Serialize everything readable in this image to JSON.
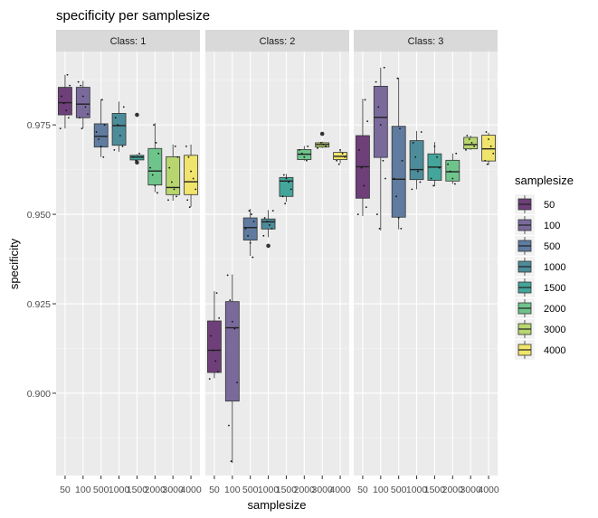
{
  "chart_data": {
    "type": "boxplot",
    "title": "specificity per samplesize",
    "xlabel": "samplesize",
    "ylabel": "specificity",
    "ylim": [
      0.877,
      0.9955
    ],
    "yticks": [
      0.9,
      0.925,
      0.95,
      0.975
    ],
    "ytick_labels": [
      "0.900",
      "0.925",
      "0.950",
      "0.975"
    ],
    "categories": [
      "50",
      "100",
      "500",
      "1000",
      "1500",
      "2000",
      "3000",
      "4000"
    ],
    "legend": {
      "title": "samplesize",
      "position": "right"
    },
    "colors": [
      "#6f3f7a",
      "#7a6a9c",
      "#5f7ba0",
      "#4d8c9a",
      "#44a59a",
      "#6ec48b",
      "#b8d66f",
      "#f0e46c"
    ],
    "panels": [
      {
        "label": "Class: 1",
        "boxes": [
          {
            "q1": 0.9778,
            "med": 0.9812,
            "q3": 0.9855,
            "lo": 0.974,
            "hi": 0.989,
            "points": [
              0.974,
              0.977,
              0.979,
              0.981,
              0.983,
              0.986,
              0.989
            ],
            "outliers": []
          },
          {
            "q1": 0.977,
            "med": 0.9808,
            "q3": 0.9855,
            "lo": 0.974,
            "hi": 0.9873,
            "points": [
              0.974,
              0.977,
              0.978,
              0.98,
              0.983,
              0.986,
              0.987
            ],
            "outliers": []
          },
          {
            "q1": 0.9688,
            "med": 0.9718,
            "q3": 0.9753,
            "lo": 0.966,
            "hi": 0.9822,
            "points": [
              0.966,
              0.969,
              0.971,
              0.973,
              0.975,
              0.982
            ],
            "outliers": []
          },
          {
            "q1": 0.9693,
            "med": 0.9748,
            "q3": 0.9782,
            "lo": 0.9675,
            "hi": 0.9815,
            "points": [
              0.968,
              0.969,
              0.972,
              0.975,
              0.977,
              0.98
            ],
            "outliers": []
          },
          {
            "q1": 0.9652,
            "med": 0.966,
            "q3": 0.9665,
            "lo": 0.965,
            "hi": 0.9668,
            "points": [
              0.965,
              0.966,
              0.966,
              0.967
            ],
            "outliers": [
              0.9778,
              0.9645
            ]
          },
          {
            "q1": 0.9582,
            "med": 0.9621,
            "q3": 0.9684,
            "lo": 0.9562,
            "hi": 0.9755,
            "points": [
              0.956,
              0.958,
              0.961,
              0.963,
              0.967,
              0.97,
              0.975
            ],
            "outliers": []
          },
          {
            "q1": 0.9555,
            "med": 0.9575,
            "q3": 0.9661,
            "lo": 0.9538,
            "hi": 0.9695,
            "points": [
              0.954,
              0.955,
              0.957,
              0.959,
              0.963,
              0.966,
              0.969
            ],
            "outliers": []
          },
          {
            "q1": 0.9555,
            "med": 0.9591,
            "q3": 0.9665,
            "lo": 0.9521,
            "hi": 0.9695,
            "points": [
              0.952,
              0.954,
              0.957,
              0.96,
              0.962,
              0.966,
              0.969
            ],
            "outliers": []
          }
        ]
      },
      {
        "label": "Class: 2",
        "boxes": [
          {
            "q1": 0.9058,
            "med": 0.912,
            "q3": 0.9202,
            "lo": 0.9042,
            "hi": 0.9285,
            "points": [
              0.904,
              0.906,
              0.909,
              0.912,
              0.916,
              0.921,
              0.928
            ],
            "outliers": []
          },
          {
            "q1": 0.8978,
            "med": 0.9183,
            "q3": 0.9256,
            "lo": 0.8805,
            "hi": 0.9332,
            "points": [
              0.881,
              0.891,
              0.903,
              0.918,
              0.92,
              0.926,
              0.933
            ],
            "outliers": []
          },
          {
            "q1": 0.9428,
            "med": 0.9463,
            "q3": 0.949,
            "lo": 0.9384,
            "hi": 0.9515,
            "points": [
              0.938,
              0.942,
              0.944,
              0.946,
              0.948,
              0.95,
              0.951
            ],
            "outliers": []
          },
          {
            "q1": 0.9459,
            "med": 0.9479,
            "q3": 0.9487,
            "lo": 0.9436,
            "hi": 0.9512,
            "points": [
              0.944,
              0.946,
              0.947,
              0.948,
              0.949,
              0.951
            ],
            "outliers": [
              0.9412
            ]
          },
          {
            "q1": 0.955,
            "med": 0.9593,
            "q3": 0.9603,
            "lo": 0.9535,
            "hi": 0.9613,
            "points": [
              0.953,
              0.955,
              0.957,
              0.959,
              0.96,
              0.961
            ],
            "outliers": []
          },
          {
            "q1": 0.9653,
            "med": 0.9668,
            "q3": 0.9681,
            "lo": 0.965,
            "hi": 0.9691,
            "points": [
              0.965,
              0.966,
              0.967,
              0.968,
              0.969
            ],
            "outliers": []
          },
          {
            "q1": 0.9688,
            "med": 0.9695,
            "q3": 0.97,
            "lo": 0.9685,
            "hi": 0.9703,
            "points": [
              0.9685,
              0.969,
              0.9695,
              0.97
            ],
            "outliers": [
              0.9725
            ]
          },
          {
            "q1": 0.9653,
            "med": 0.9662,
            "q3": 0.9673,
            "lo": 0.9643,
            "hi": 0.9681,
            "points": [
              0.964,
              0.965,
              0.966,
              0.967,
              0.968
            ],
            "outliers": []
          }
        ]
      },
      {
        "label": "Class: 3",
        "boxes": [
          {
            "q1": 0.9545,
            "med": 0.9633,
            "q3": 0.972,
            "lo": 0.9495,
            "hi": 0.9823,
            "points": [
              0.95,
              0.952,
              0.958,
              0.963,
              0.968,
              0.976,
              0.982
            ],
            "outliers": []
          },
          {
            "q1": 0.9659,
            "med": 0.9771,
            "q3": 0.9858,
            "lo": 0.9455,
            "hi": 0.991,
            "points": [
              0.946,
              0.95,
              0.96,
              0.965,
              0.975,
              0.98,
              0.987,
              0.991
            ],
            "outliers": []
          },
          {
            "q1": 0.9492,
            "med": 0.9598,
            "q3": 0.9746,
            "lo": 0.9458,
            "hi": 0.9882,
            "points": [
              0.946,
              0.949,
              0.955,
              0.96,
              0.965,
              0.974,
              0.988
            ],
            "outliers": []
          },
          {
            "q1": 0.9597,
            "med": 0.9625,
            "q3": 0.9706,
            "lo": 0.957,
            "hi": 0.9733,
            "points": [
              0.957,
              0.959,
              0.962,
              0.966,
              0.97,
              0.973
            ],
            "outliers": []
          },
          {
            "q1": 0.9595,
            "med": 0.9632,
            "q3": 0.9669,
            "lo": 0.9578,
            "hi": 0.9702,
            "points": [
              0.958,
              0.96,
              0.963,
              0.966,
              0.969
            ],
            "outliers": []
          },
          {
            "q1": 0.9593,
            "med": 0.9619,
            "q3": 0.9651,
            "lo": 0.9585,
            "hi": 0.967,
            "points": [
              0.9585,
              0.96,
              0.962,
              0.964,
              0.967
            ],
            "outliers": []
          },
          {
            "q1": 0.9683,
            "med": 0.9695,
            "q3": 0.9715,
            "lo": 0.968,
            "hi": 0.972,
            "points": [
              0.968,
              0.969,
              0.97,
              0.971,
              0.972
            ],
            "outliers": []
          },
          {
            "q1": 0.9649,
            "med": 0.9683,
            "q3": 0.9721,
            "lo": 0.9638,
            "hi": 0.9728,
            "points": [
              0.964,
              0.965,
              0.967,
              0.969,
              0.971,
              0.973
            ],
            "outliers": []
          }
        ]
      }
    ]
  }
}
